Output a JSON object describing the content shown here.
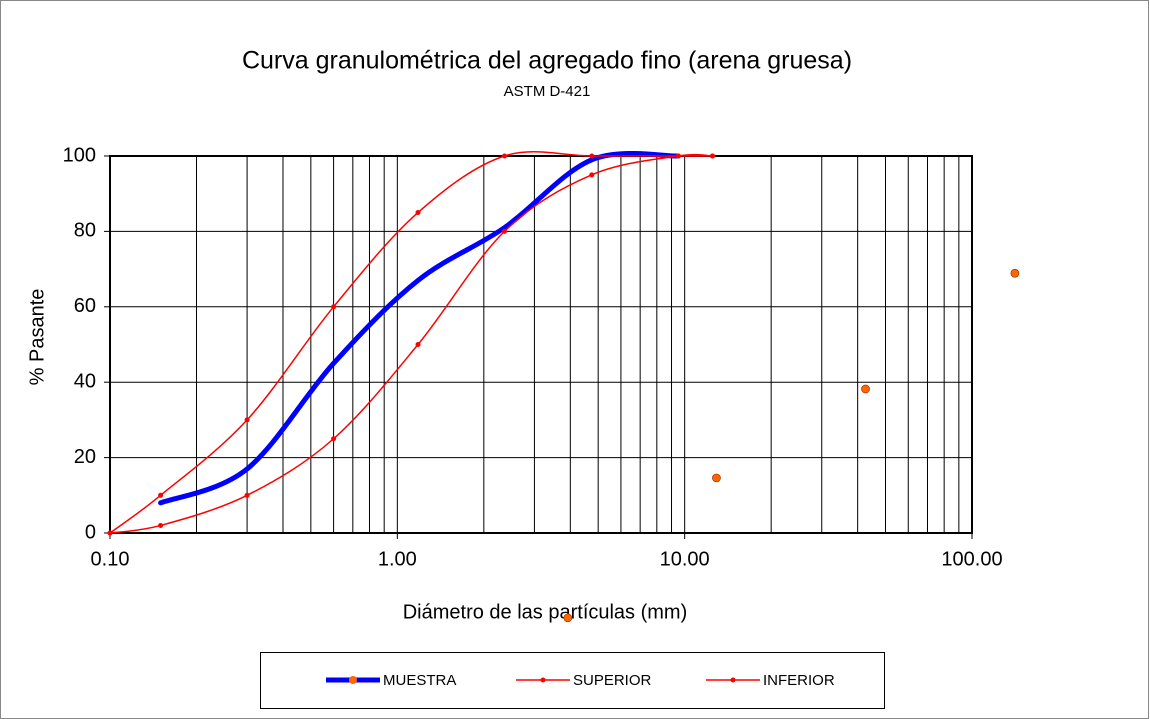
{
  "chart_data": {
    "type": "line",
    "title": "Curva granulométrica del agregado fino (arena gruesa)",
    "subtitle": "ASTM D-421",
    "x_label": "Diámetro de las partículas (mm)",
    "y_label": "% Pasante",
    "x_log": true,
    "xlim": [
      0.1,
      100
    ],
    "xticks": [
      {
        "value": 0.1,
        "label": "0.10"
      },
      {
        "value": 1,
        "label": "1.00"
      },
      {
        "value": 10,
        "label": "10.00"
      },
      {
        "value": 100,
        "label": "100.00"
      }
    ],
    "xminorticks": [
      0.2,
      0.3,
      0.4,
      0.5,
      0.6,
      0.7,
      0.8,
      0.9,
      2,
      3,
      4,
      5,
      6,
      7,
      8,
      9,
      20,
      30,
      40,
      50,
      60,
      70,
      80,
      90
    ],
    "ylim": [
      0,
      100
    ],
    "yticks": [
      0,
      20,
      40,
      60,
      80,
      100
    ],
    "grid": true,
    "legend": "bottom",
    "series": [
      {
        "name": "MUESTRA",
        "color": "#0000ff",
        "marker_color": "#ff6600",
        "width": 5,
        "smooth": true,
        "markers": false,
        "x": [
          0.15,
          0.3,
          0.6,
          1.18,
          2.36,
          4.75,
          9.5
        ],
        "values": [
          8,
          17,
          45,
          67,
          81,
          99,
          100
        ]
      },
      {
        "name": "SUPERIOR",
        "color": "#ff0000",
        "marker_color": "#ff0000",
        "width": 1.5,
        "smooth": true,
        "markers": true,
        "x": [
          0.1,
          0.15,
          0.3,
          0.6,
          1.18,
          2.36,
          4.75,
          9.5,
          12.5
        ],
        "values": [
          0,
          10,
          30,
          60,
          85,
          100,
          100,
          100,
          100
        ]
      },
      {
        "name": "INFERIOR",
        "color": "#ff0000",
        "marker_color": "#ff0000",
        "width": 1.5,
        "smooth": true,
        "markers": true,
        "x": [
          0.1,
          0.15,
          0.3,
          0.6,
          1.18,
          2.36,
          4.75,
          9.5,
          12.5
        ],
        "values": [
          0,
          2,
          10,
          25,
          50,
          80,
          95,
          100,
          100
        ]
      },
      {
        "color": "#ff6600",
        "line": false,
        "x": [
          12.9,
          42.6,
          141,
          3.92
        ],
        "values": [
          14.6,
          38.2,
          68.9,
          -22.5
        ]
      }
    ]
  }
}
